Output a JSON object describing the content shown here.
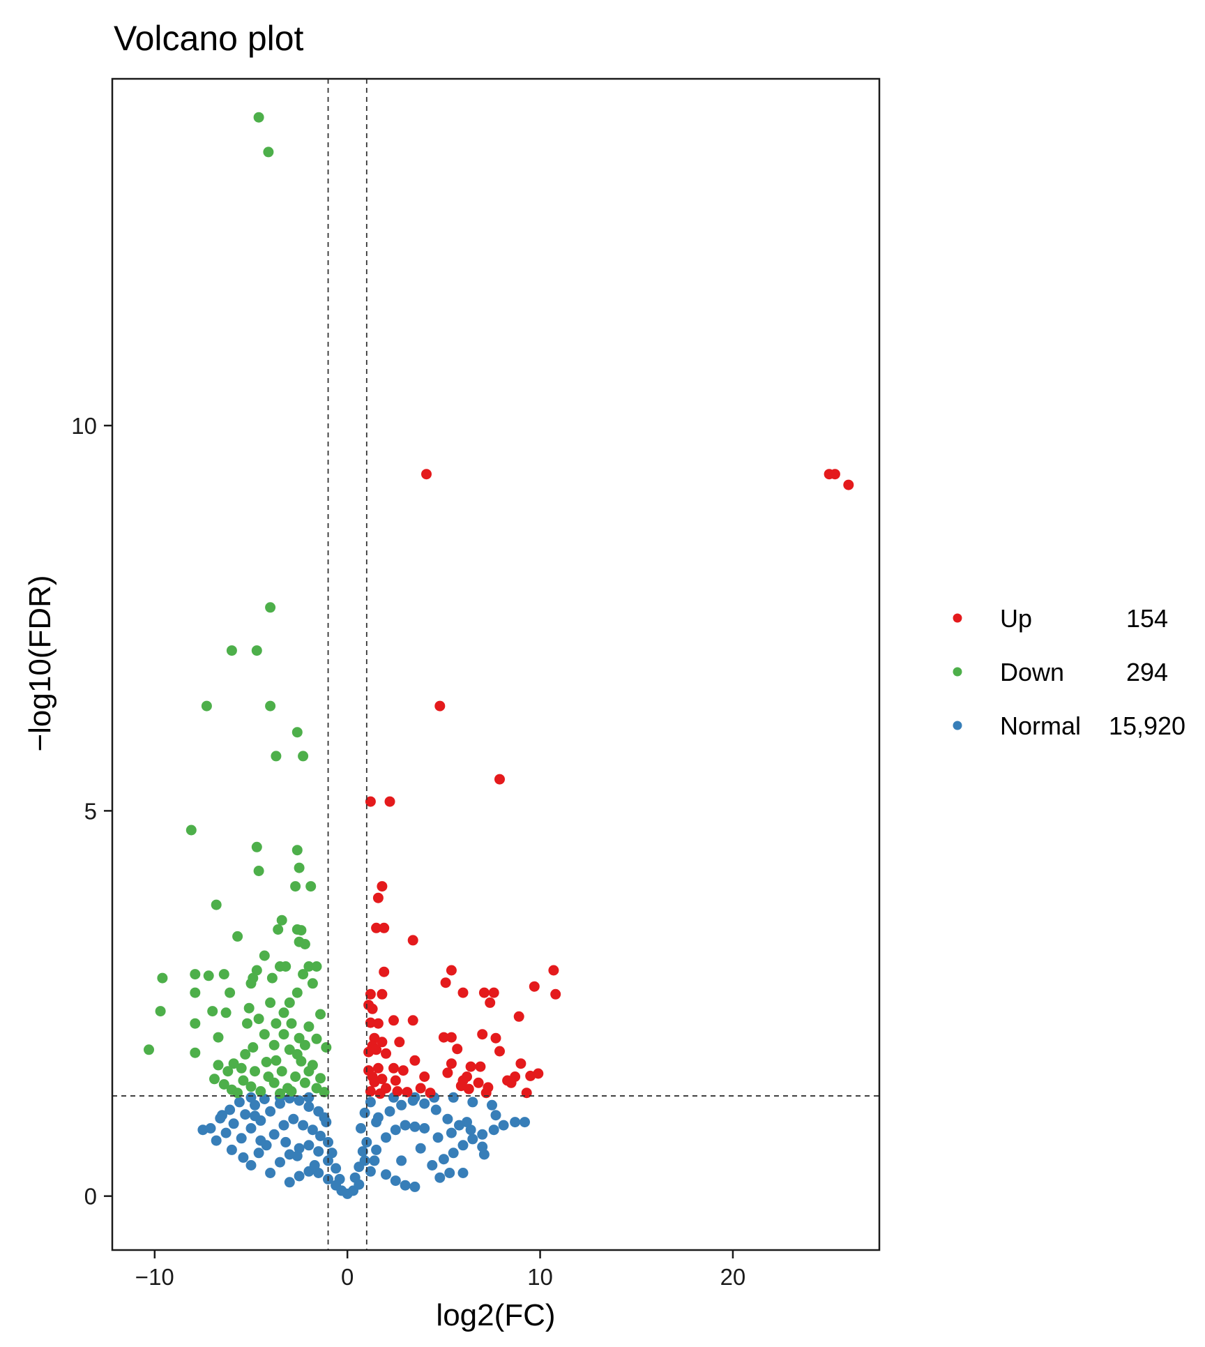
{
  "chart_data": {
    "type": "scatter",
    "title": "Volcano plot",
    "xlabel": "log2(FC)",
    "ylabel": "−log10(FDR)",
    "xlim": [
      -12.2,
      27.6
    ],
    "ylim": [
      -0.7,
      14.5
    ],
    "x_ticks": [
      -10,
      0,
      10,
      20
    ],
    "x_tick_labels": [
      "−10",
      "0",
      "10",
      "20"
    ],
    "y_ticks": [
      0,
      5,
      10
    ],
    "y_tick_labels": [
      "0",
      "5",
      "10"
    ],
    "grid": false,
    "legend_position": "right",
    "threshold_lines": {
      "x": [
        -1,
        1
      ],
      "y": 1.3
    },
    "series": [
      {
        "name": "Up",
        "count": "154",
        "color": "#e41a1c",
        "points": [
          [
            4.1,
            9.37
          ],
          [
            25.0,
            9.37
          ],
          [
            25.3,
            9.37
          ],
          [
            26.0,
            9.23
          ],
          [
            4.8,
            6.36
          ],
          [
            7.9,
            5.41
          ],
          [
            1.2,
            5.12
          ],
          [
            2.2,
            5.12
          ],
          [
            1.8,
            4.02
          ],
          [
            1.6,
            3.87
          ],
          [
            1.5,
            3.48
          ],
          [
            1.9,
            3.48
          ],
          [
            3.4,
            3.32
          ],
          [
            10.7,
            2.93
          ],
          [
            5.4,
            2.93
          ],
          [
            1.9,
            2.91
          ],
          [
            5.1,
            2.77
          ],
          [
            9.7,
            2.72
          ],
          [
            6.0,
            2.64
          ],
          [
            7.1,
            2.64
          ],
          [
            7.6,
            2.64
          ],
          [
            10.8,
            2.62
          ],
          [
            1.2,
            2.62
          ],
          [
            1.8,
            2.62
          ],
          [
            7.4,
            2.51
          ],
          [
            1.1,
            2.48
          ],
          [
            1.3,
            2.43
          ],
          [
            8.9,
            2.33
          ],
          [
            2.4,
            2.28
          ],
          [
            3.4,
            2.28
          ],
          [
            1.2,
            2.25
          ],
          [
            1.6,
            2.24
          ],
          [
            7.0,
            2.1
          ],
          [
            5.0,
            2.06
          ],
          [
            5.4,
            2.06
          ],
          [
            7.7,
            2.05
          ],
          [
            1.4,
            2.05
          ],
          [
            1.8,
            2.0
          ],
          [
            2.7,
            2.0
          ],
          [
            1.3,
            1.95
          ],
          [
            5.7,
            1.91
          ],
          [
            7.9,
            1.88
          ],
          [
            1.1,
            1.87
          ],
          [
            1.5,
            1.9
          ],
          [
            2.0,
            1.85
          ],
          [
            3.5,
            1.76
          ],
          [
            5.4,
            1.72
          ],
          [
            9.0,
            1.72
          ],
          [
            6.4,
            1.68
          ],
          [
            6.9,
            1.68
          ],
          [
            1.6,
            1.66
          ],
          [
            2.4,
            1.66
          ],
          [
            1.1,
            1.63
          ],
          [
            2.9,
            1.63
          ],
          [
            5.2,
            1.6
          ],
          [
            9.9,
            1.59
          ],
          [
            9.5,
            1.56
          ],
          [
            6.2,
            1.55
          ],
          [
            8.7,
            1.55
          ],
          [
            4.0,
            1.55
          ],
          [
            1.3,
            1.55
          ],
          [
            1.8,
            1.52
          ],
          [
            2.5,
            1.5
          ],
          [
            6.0,
            1.5
          ],
          [
            8.3,
            1.5
          ],
          [
            1.4,
            1.48
          ],
          [
            6.8,
            1.47
          ],
          [
            8.5,
            1.47
          ],
          [
            5.9,
            1.43
          ],
          [
            7.3,
            1.41
          ],
          [
            2.0,
            1.4
          ],
          [
            3.8,
            1.4
          ],
          [
            6.3,
            1.39
          ],
          [
            9.3,
            1.34
          ],
          [
            7.2,
            1.34
          ],
          [
            4.3,
            1.34
          ],
          [
            1.2,
            1.36
          ],
          [
            2.6,
            1.36
          ],
          [
            3.1,
            1.35
          ],
          [
            1.7,
            1.33
          ]
        ]
      },
      {
        "name": "Down",
        "count": "294",
        "color": "#4daf4a",
        "points": [
          [
            -4.6,
            14.0
          ],
          [
            -4.1,
            13.55
          ],
          [
            -4.0,
            7.64
          ],
          [
            -6.0,
            7.08
          ],
          [
            -4.7,
            7.08
          ],
          [
            -7.3,
            6.36
          ],
          [
            -4.0,
            6.36
          ],
          [
            -2.6,
            6.02
          ],
          [
            -3.7,
            5.71
          ],
          [
            -2.3,
            5.71
          ],
          [
            -8.1,
            4.75
          ],
          [
            -4.7,
            4.53
          ],
          [
            -2.6,
            4.49
          ],
          [
            -2.5,
            4.26
          ],
          [
            -4.6,
            4.22
          ],
          [
            -2.7,
            4.02
          ],
          [
            -1.9,
            4.02
          ],
          [
            -6.8,
            3.78
          ],
          [
            -3.4,
            3.58
          ],
          [
            -2.4,
            3.45
          ],
          [
            -2.6,
            3.46
          ],
          [
            -3.6,
            3.46
          ],
          [
            -5.7,
            3.37
          ],
          [
            -2.5,
            3.3
          ],
          [
            -2.2,
            3.27
          ],
          [
            -4.3,
            3.12
          ],
          [
            -3.5,
            2.98
          ],
          [
            -3.2,
            2.98
          ],
          [
            -2.0,
            2.98
          ],
          [
            -1.6,
            2.98
          ],
          [
            -4.7,
            2.93
          ],
          [
            -7.9,
            2.88
          ],
          [
            -2.3,
            2.88
          ],
          [
            -6.4,
            2.88
          ],
          [
            -7.2,
            2.86
          ],
          [
            -9.6,
            2.83
          ],
          [
            -4.9,
            2.83
          ],
          [
            -3.9,
            2.83
          ],
          [
            -5.0,
            2.76
          ],
          [
            -1.8,
            2.76
          ],
          [
            -7.9,
            2.64
          ],
          [
            -6.1,
            2.64
          ],
          [
            -2.6,
            2.64
          ],
          [
            -4.0,
            2.51
          ],
          [
            -3.0,
            2.51
          ],
          [
            -5.1,
            2.44
          ],
          [
            -9.7,
            2.4
          ],
          [
            -6.3,
            2.38
          ],
          [
            -7.0,
            2.4
          ],
          [
            -3.3,
            2.38
          ],
          [
            -4.6,
            2.3
          ],
          [
            -1.4,
            2.36
          ],
          [
            -2.9,
            2.24
          ],
          [
            -7.9,
            2.24
          ],
          [
            -5.2,
            2.24
          ],
          [
            -3.7,
            2.24
          ],
          [
            -2.0,
            2.2
          ],
          [
            -3.3,
            2.1
          ],
          [
            -4.3,
            2.1
          ],
          [
            -6.7,
            2.06
          ],
          [
            -2.5,
            2.05
          ],
          [
            -1.6,
            2.04
          ],
          [
            -3.8,
            1.96
          ],
          [
            -2.2,
            1.96
          ],
          [
            -10.3,
            1.9
          ],
          [
            -7.9,
            1.86
          ],
          [
            -4.9,
            1.93
          ],
          [
            -3.0,
            1.9
          ],
          [
            -1.1,
            1.93
          ],
          [
            -5.3,
            1.84
          ],
          [
            -2.6,
            1.84
          ],
          [
            -5.9,
            1.72
          ],
          [
            -3.7,
            1.76
          ],
          [
            -2.4,
            1.75
          ],
          [
            -4.2,
            1.74
          ],
          [
            -6.7,
            1.7
          ],
          [
            -5.5,
            1.66
          ],
          [
            -1.8,
            1.7
          ],
          [
            -6.2,
            1.62
          ],
          [
            -4.8,
            1.62
          ],
          [
            -3.4,
            1.62
          ],
          [
            -2.0,
            1.62
          ],
          [
            -6.9,
            1.52
          ],
          [
            -5.4,
            1.5
          ],
          [
            -4.1,
            1.55
          ],
          [
            -2.7,
            1.55
          ],
          [
            -1.4,
            1.53
          ],
          [
            -6.4,
            1.45
          ],
          [
            -3.8,
            1.47
          ],
          [
            -2.2,
            1.47
          ],
          [
            -5.0,
            1.42
          ],
          [
            -3.1,
            1.4
          ],
          [
            -1.6,
            1.4
          ],
          [
            -6.0,
            1.38
          ],
          [
            -4.5,
            1.36
          ],
          [
            -2.9,
            1.36
          ],
          [
            -5.7,
            1.34
          ],
          [
            -3.5,
            1.33
          ],
          [
            -1.2,
            1.35
          ]
        ]
      },
      {
        "name": "Normal",
        "count": "15,920",
        "color": "#377eb8",
        "points": [
          [
            -7.5,
            0.86
          ],
          [
            -7.1,
            0.88
          ],
          [
            -6.6,
            1.01
          ],
          [
            -6.1,
            1.12
          ],
          [
            -5.6,
            1.22
          ],
          [
            -6.8,
            0.72
          ],
          [
            -6.3,
            0.82
          ],
          [
            -5.9,
            0.94
          ],
          [
            -5.3,
            1.06
          ],
          [
            -4.8,
            1.18
          ],
          [
            -4.3,
            1.26
          ],
          [
            -6.0,
            0.6
          ],
          [
            -5.5,
            0.75
          ],
          [
            -5.0,
            0.88
          ],
          [
            -4.5,
            0.98
          ],
          [
            -4.0,
            1.1
          ],
          [
            -3.5,
            1.2
          ],
          [
            -3.0,
            1.27
          ],
          [
            -2.5,
            1.24
          ],
          [
            -2.0,
            1.16
          ],
          [
            -1.5,
            1.1
          ],
          [
            -1.2,
            1.02
          ],
          [
            -5.0,
            0.4
          ],
          [
            -4.6,
            0.56
          ],
          [
            -4.2,
            0.66
          ],
          [
            -3.8,
            0.8
          ],
          [
            -3.3,
            0.92
          ],
          [
            -2.8,
            1.0
          ],
          [
            -2.3,
            0.92
          ],
          [
            -1.8,
            0.86
          ],
          [
            -1.4,
            0.78
          ],
          [
            -1.0,
            0.7
          ],
          [
            -0.8,
            0.56
          ],
          [
            -4.0,
            0.3
          ],
          [
            -3.5,
            0.44
          ],
          [
            -3.0,
            0.54
          ],
          [
            -2.5,
            0.62
          ],
          [
            -2.0,
            0.66
          ],
          [
            -1.5,
            0.58
          ],
          [
            -1.0,
            0.46
          ],
          [
            -0.6,
            0.36
          ],
          [
            -0.4,
            0.22
          ],
          [
            -3.0,
            0.18
          ],
          [
            -2.5,
            0.26
          ],
          [
            -2.0,
            0.32
          ],
          [
            -1.5,
            0.3
          ],
          [
            -1.0,
            0.22
          ],
          [
            -0.6,
            0.14
          ],
          [
            -0.3,
            0.07
          ],
          [
            0.0,
            0.03
          ],
          [
            0.3,
            0.07
          ],
          [
            0.6,
            0.15
          ],
          [
            0.4,
            0.24
          ],
          [
            0.6,
            0.38
          ],
          [
            0.8,
            0.58
          ],
          [
            0.7,
            0.88
          ],
          [
            0.9,
            1.08
          ],
          [
            1.2,
            1.22
          ],
          [
            1.0,
            0.7
          ],
          [
            1.4,
            0.46
          ],
          [
            2.0,
            0.28
          ],
          [
            2.5,
            0.2
          ],
          [
            3.0,
            0.14
          ],
          [
            3.5,
            0.12
          ],
          [
            1.5,
            0.6
          ],
          [
            2.0,
            0.76
          ],
          [
            2.5,
            0.86
          ],
          [
            3.0,
            0.92
          ],
          [
            3.5,
            0.9
          ],
          [
            4.0,
            0.88
          ],
          [
            1.6,
            1.02
          ],
          [
            2.2,
            1.1
          ],
          [
            2.8,
            1.18
          ],
          [
            3.4,
            1.24
          ],
          [
            4.0,
            1.2
          ],
          [
            4.6,
            1.12
          ],
          [
            5.2,
            1.0
          ],
          [
            5.8,
            0.92
          ],
          [
            6.4,
            0.86
          ],
          [
            7.0,
            0.8
          ],
          [
            7.6,
            0.86
          ],
          [
            8.1,
            0.92
          ],
          [
            4.4,
            0.4
          ],
          [
            5.0,
            0.48
          ],
          [
            5.5,
            0.56
          ],
          [
            6.0,
            0.66
          ],
          [
            6.5,
            0.74
          ],
          [
            7.0,
            0.64
          ],
          [
            4.8,
            0.24
          ],
          [
            5.3,
            0.3
          ],
          [
            6.0,
            0.3
          ],
          [
            7.1,
            0.54
          ],
          [
            7.5,
            1.18
          ],
          [
            7.7,
            1.05
          ],
          [
            8.7,
            0.96
          ],
          [
            9.2,
            0.96
          ],
          [
            1.5,
            0.96
          ],
          [
            2.4,
            1.28
          ],
          [
            3.5,
            1.28
          ],
          [
            4.5,
            1.28
          ],
          [
            5.5,
            1.28
          ],
          [
            6.5,
            1.22
          ],
          [
            -2.0,
            1.28
          ],
          [
            -3.5,
            1.28
          ],
          [
            -5.0,
            1.28
          ],
          [
            -6.5,
            1.05
          ],
          [
            -4.8,
            1.04
          ],
          [
            -2.6,
            0.52
          ],
          [
            -1.7,
            0.4
          ],
          [
            0.9,
            0.46
          ],
          [
            1.2,
            0.32
          ],
          [
            2.8,
            0.46
          ],
          [
            3.8,
            0.62
          ],
          [
            4.7,
            0.76
          ],
          [
            5.4,
            0.82
          ],
          [
            6.2,
            0.96
          ],
          [
            -5.4,
            0.5
          ],
          [
            -4.5,
            0.72
          ],
          [
            -3.2,
            0.7
          ],
          [
            -1.1,
            0.96
          ]
        ]
      }
    ]
  }
}
